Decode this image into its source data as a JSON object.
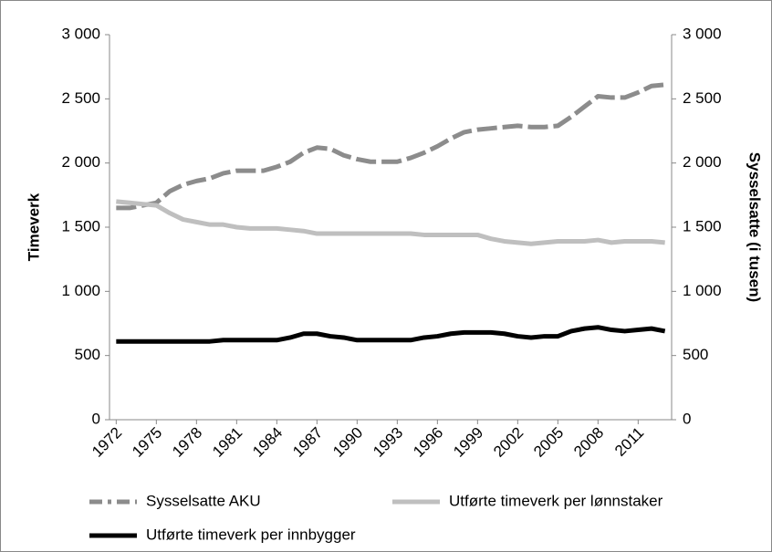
{
  "chart_data": {
    "type": "line",
    "categories": [
      "1972",
      null,
      null,
      "1975",
      null,
      null,
      "1978",
      null,
      null,
      "1981",
      null,
      null,
      "1984",
      null,
      null,
      "1987",
      null,
      null,
      "1990",
      null,
      null,
      "1993",
      null,
      null,
      "1996",
      null,
      null,
      "1999",
      null,
      null,
      "2002",
      null,
      null,
      "2005",
      null,
      null,
      "2008",
      null,
      null,
      "2011",
      null,
      null
    ],
    "series": [
      {
        "name": "Sysselsatte AKU",
        "color": "#8c8c8c",
        "dashed": true,
        "axis": "y2",
        "values": [
          1650,
          1650,
          1670,
          1690,
          1780,
          1830,
          1860,
          1880,
          1920,
          1940,
          1940,
          1940,
          1970,
          2010,
          2080,
          2120,
          2110,
          2060,
          2030,
          2010,
          2010,
          2010,
          2040,
          2080,
          2130,
          2190,
          2240,
          2260,
          2270,
          2280,
          2290,
          2280,
          2280,
          2290,
          2360,
          2440,
          2520,
          2510,
          2510,
          2550,
          2600,
          2610
        ]
      },
      {
        "name": "Utførte timeverk per lønnstaker",
        "color": "#bfbfbf",
        "dashed": false,
        "values": [
          1700,
          1690,
          1680,
          1670,
          1610,
          1560,
          1540,
          1520,
          1520,
          1500,
          1490,
          1490,
          1490,
          1480,
          1470,
          1450,
          1450,
          1450,
          1450,
          1450,
          1450,
          1450,
          1450,
          1440,
          1440,
          1440,
          1440,
          1440,
          1410,
          1390,
          1380,
          1370,
          1380,
          1390,
          1390,
          1390,
          1400,
          1380,
          1390,
          1390,
          1390,
          1380
        ]
      },
      {
        "name": "Utførte timeverk per innbygger",
        "color": "#000000",
        "dashed": false,
        "values": [
          610,
          610,
          610,
          610,
          610,
          610,
          610,
          610,
          620,
          620,
          620,
          620,
          620,
          640,
          670,
          670,
          650,
          640,
          620,
          620,
          620,
          620,
          620,
          640,
          650,
          670,
          680,
          680,
          680,
          670,
          650,
          640,
          650,
          650,
          690,
          710,
          720,
          700,
          690,
          700,
          710,
          690
        ]
      }
    ],
    "ylabel": "Timeverk",
    "y2label": "Sysselsatte (i tusen)",
    "ylim": [
      0,
      3000
    ],
    "yticks": [
      0,
      500,
      {
        "value": 1000,
        "label": "1 000"
      },
      {
        "value": 1500,
        "label": "1 500"
      },
      {
        "value": 2000,
        "label": "2 000"
      },
      {
        "value": 2500,
        "label": "2 500"
      },
      {
        "value": 3000,
        "label": "3 000"
      }
    ],
    "y2lim": [
      0,
      3000
    ],
    "y2ticks": [
      0,
      500,
      {
        "value": 1000,
        "label": "1 000"
      },
      {
        "value": 1500,
        "label": "1 500"
      },
      {
        "value": 2000,
        "label": "2 000"
      },
      {
        "value": 2500,
        "label": "2 500"
      },
      {
        "value": 3000,
        "label": "3 000"
      }
    ]
  }
}
